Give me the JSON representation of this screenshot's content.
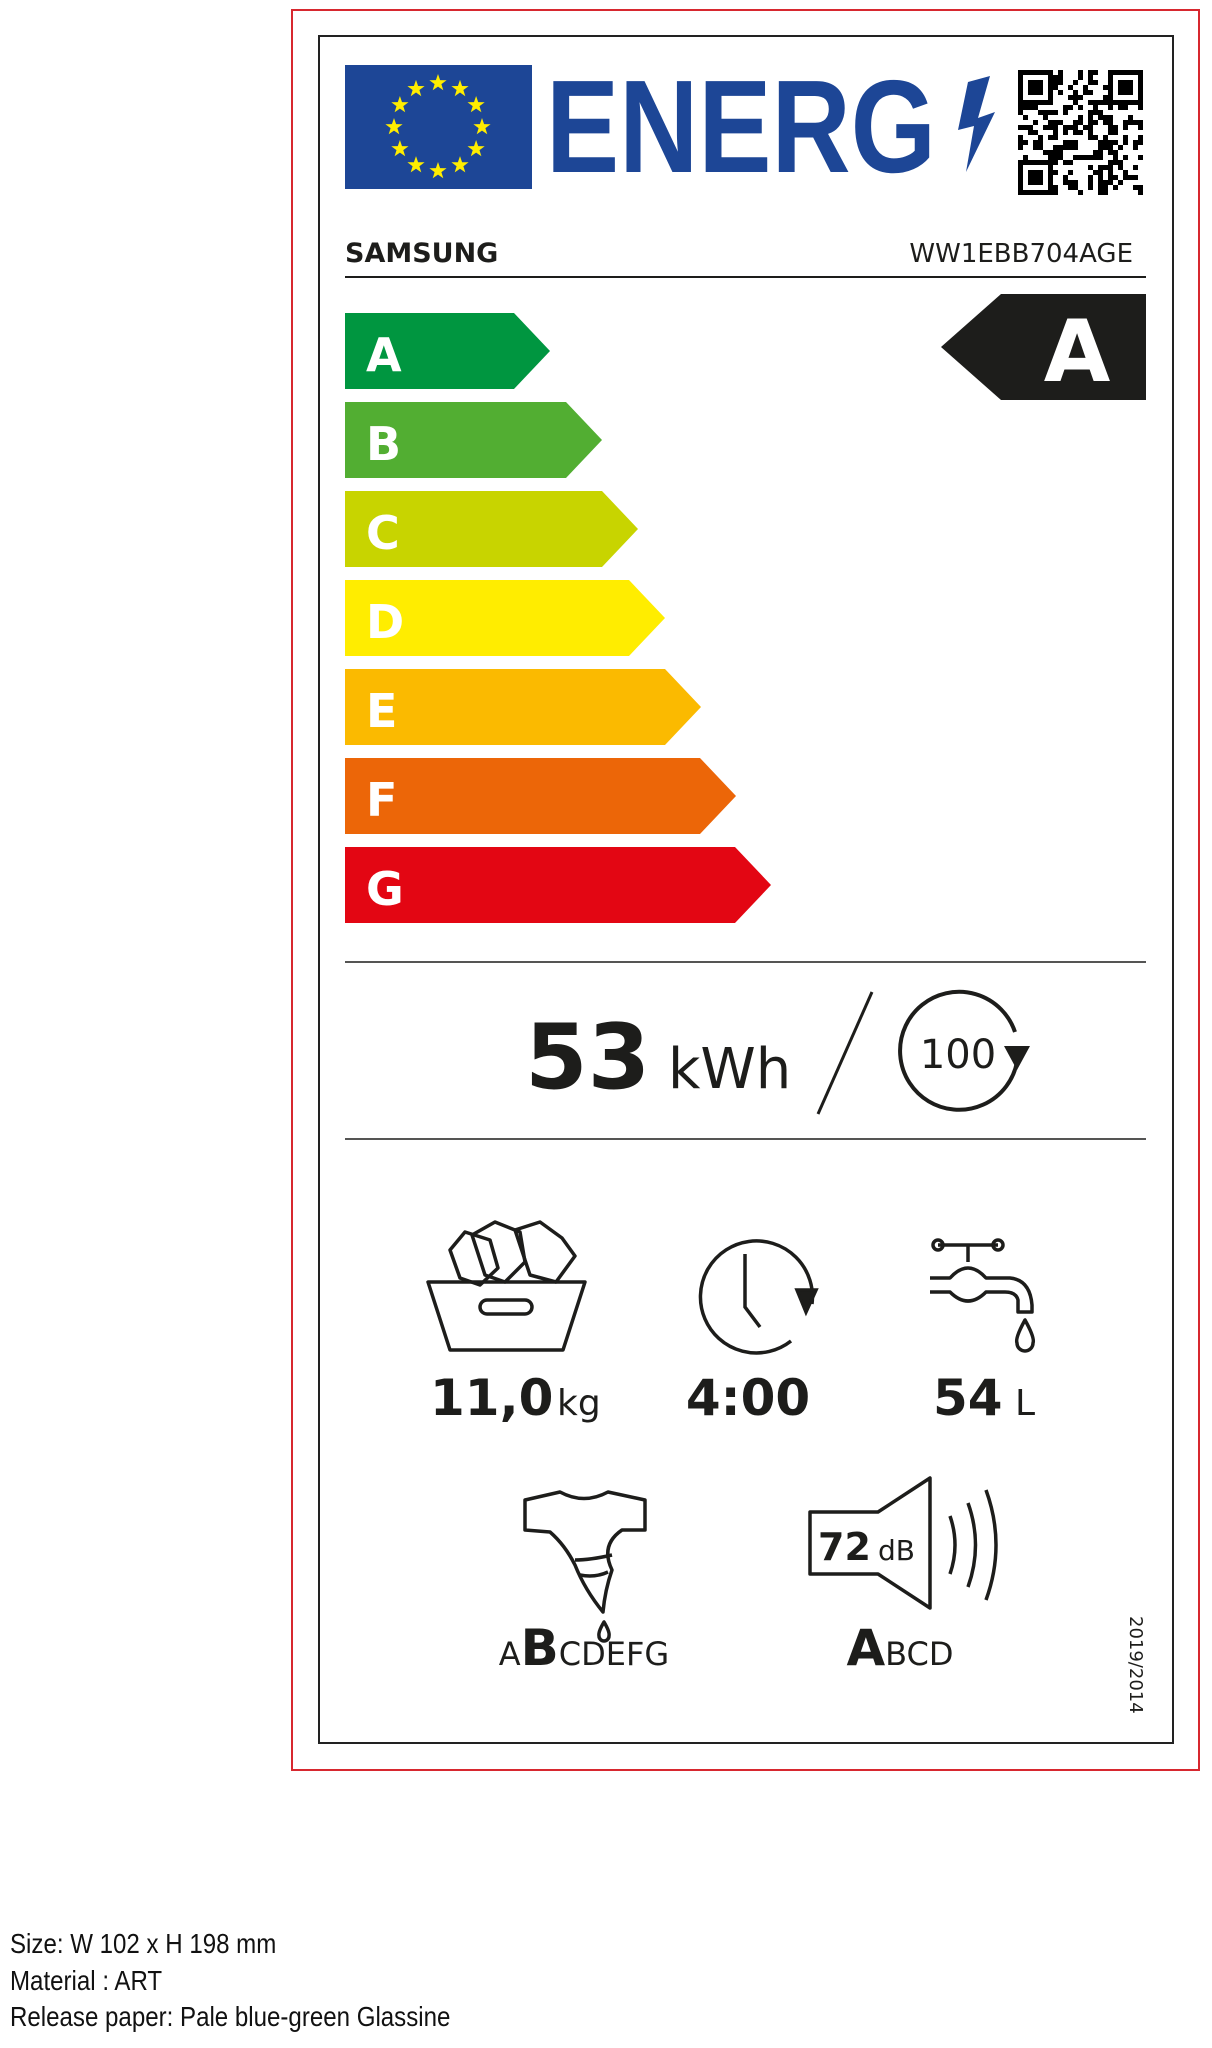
{
  "header": {
    "energy_word": "ENERG",
    "brand": "SAMSUNG",
    "model": "WW1EBB704AGE"
  },
  "scale": {
    "classes": [
      {
        "label": "A",
        "color": "#009640"
      },
      {
        "label": "B",
        "color": "#52AE32"
      },
      {
        "label": "C",
        "color": "#C8D400"
      },
      {
        "label": "D",
        "color": "#FFED00"
      },
      {
        "label": "E",
        "color": "#FBBA00"
      },
      {
        "label": "F",
        "color": "#EC6608"
      },
      {
        "label": "G",
        "color": "#E30613"
      }
    ],
    "rating": "A",
    "rating_color": "#1D1D1B"
  },
  "energy": {
    "value": "53",
    "unit": "kWh",
    "cycles": "100"
  },
  "specs": {
    "capacity_value": "11,0",
    "capacity_unit": "kg",
    "duration": "4:00",
    "water_value": "54",
    "water_unit": "L",
    "spin_class_pre": "A",
    "spin_class_selected": "B",
    "spin_class_post": "CDEFG",
    "noise_value": "72",
    "noise_unit": "dB",
    "noise_class_selected": "A",
    "noise_class_post": "BCD"
  },
  "regulation": "2019/2014",
  "footer": {
    "size": "Size: W 102 x H 198 mm",
    "material": "Material : ART",
    "release_paper": "Release paper: Pale blue-green Glassine"
  },
  "colors": {
    "eu_blue": "#1D4696",
    "eu_star": "#FFED00",
    "cut_line": "#D7282F"
  }
}
